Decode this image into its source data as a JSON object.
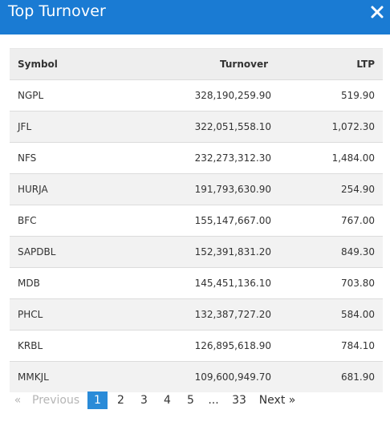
{
  "header": {
    "title": "Top Turnover",
    "close_icon": "close-icon"
  },
  "table": {
    "columns": [
      "Symbol",
      "Turnover",
      "LTP"
    ],
    "rows": [
      {
        "symbol": "NGPL",
        "turnover": "328,190,259.90",
        "ltp": "519.90"
      },
      {
        "symbol": "JFL",
        "turnover": "322,051,558.10",
        "ltp": "1,072.30"
      },
      {
        "symbol": "NFS",
        "turnover": "232,273,312.30",
        "ltp": "1,484.00"
      },
      {
        "symbol": "HURJA",
        "turnover": "191,793,630.90",
        "ltp": "254.90"
      },
      {
        "symbol": "BFC",
        "turnover": "155,147,667.00",
        "ltp": "767.00"
      },
      {
        "symbol": "SAPDBL",
        "turnover": "152,391,831.20",
        "ltp": "849.30"
      },
      {
        "symbol": "MDB",
        "turnover": "145,451,136.10",
        "ltp": "703.80"
      },
      {
        "symbol": "PHCL",
        "turnover": "132,387,727.20",
        "ltp": "584.00"
      },
      {
        "symbol": "KRBL",
        "turnover": "126,895,618.90",
        "ltp": "784.10"
      },
      {
        "symbol": "MMKJL",
        "turnover": "109,600,949.70",
        "ltp": "681.90"
      }
    ]
  },
  "pagination": {
    "prev_arrow": "«",
    "prev_label": "Previous",
    "pages": [
      "1",
      "2",
      "3",
      "4",
      "5"
    ],
    "ellipsis": "...",
    "last_page": "33",
    "next_label": "Next",
    "next_arrow": "»",
    "active_page": "1"
  },
  "colors": {
    "header_bg": "#1a7bd3",
    "active_page_bg": "#2a8bd8",
    "header_row_bg": "#eeeeee",
    "alt_row_bg": "#f2f2f2"
  }
}
